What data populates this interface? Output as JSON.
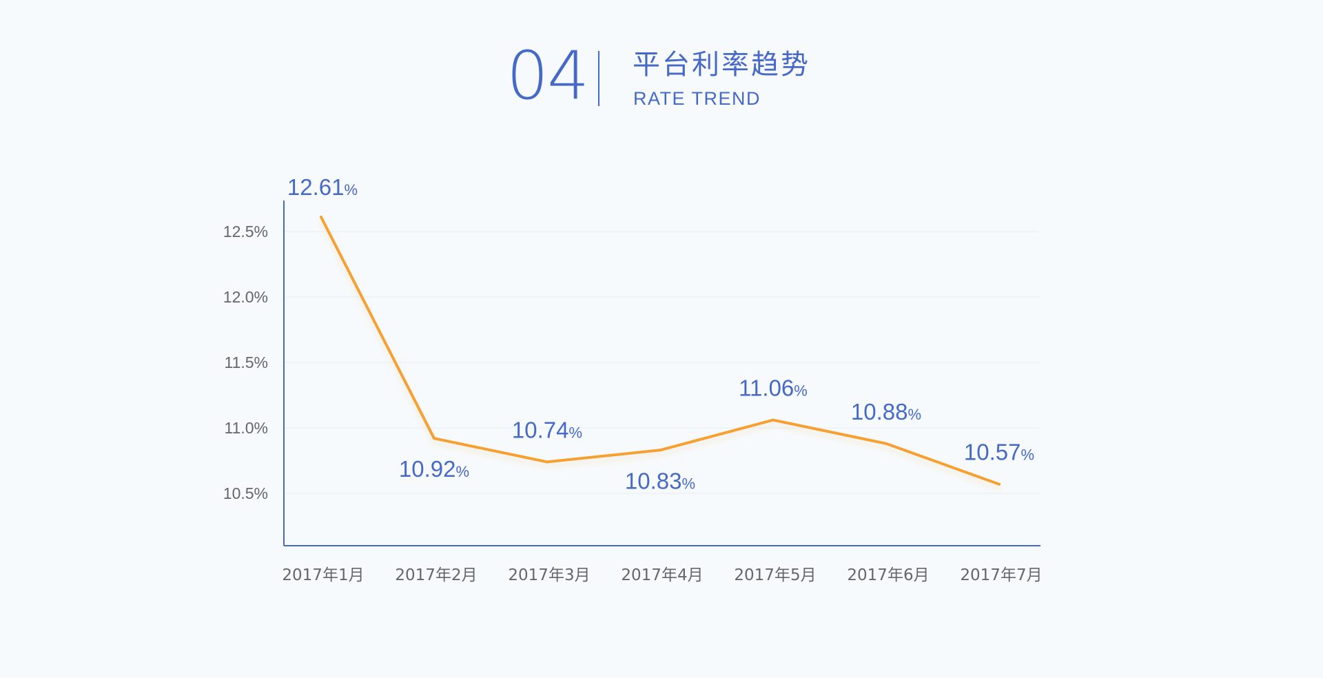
{
  "header": {
    "number": "04",
    "title_cn": "平台利率趋势",
    "title_en": "RATE TREND"
  },
  "colors": {
    "background": "#f6fafd",
    "accent_blue": "#4669c8",
    "line_orange": "#f7a030",
    "tick_text": "#666666",
    "grid": "#e8edf2"
  },
  "chart_data": {
    "type": "line",
    "categories": [
      "2017年1月",
      "2017年2月",
      "2017年3月",
      "2017年4月",
      "2017年5月",
      "2017年6月",
      "2017年7月"
    ],
    "values": [
      12.61,
      10.92,
      10.74,
      10.83,
      11.06,
      10.88,
      10.57
    ],
    "value_labels": [
      "12.61",
      "10.92",
      "10.74",
      "10.83",
      "11.06",
      "10.88",
      "10.57"
    ],
    "value_suffix": "%",
    "label_positions": [
      "above",
      "below",
      "above",
      "below",
      "above",
      "above",
      "above"
    ],
    "yticks": [
      10.5,
      11.0,
      11.5,
      12.0,
      12.5
    ],
    "ytick_labels": [
      "10.5%",
      "11.0%",
      "11.5%",
      "12.0%",
      "12.5%"
    ],
    "ylim": [
      10.1,
      12.75
    ],
    "grid": true,
    "legend": "none"
  }
}
